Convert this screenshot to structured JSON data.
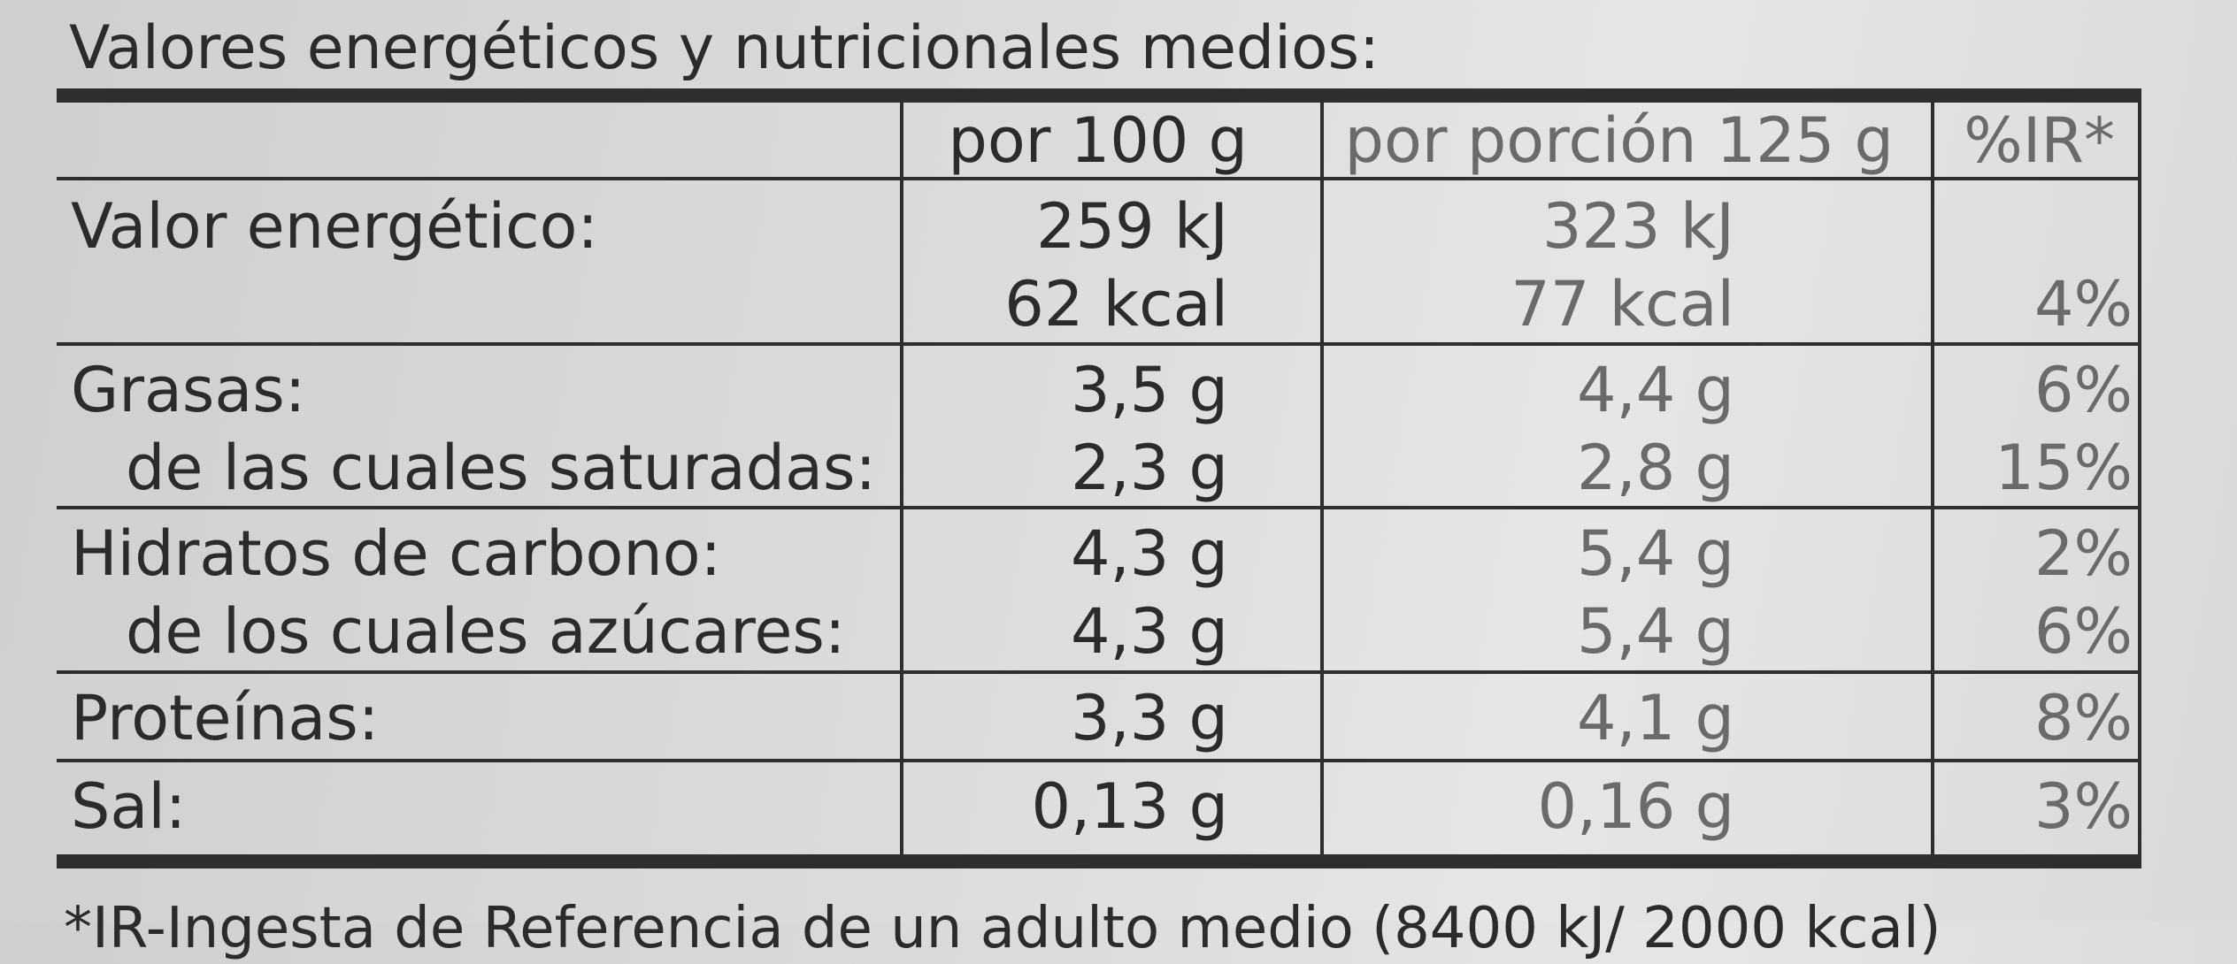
{
  "title": "Valores energéticos y nutricionales medios:",
  "table": {
    "header": [
      "por 100 g",
      "por porción 125 g",
      "%IR*"
    ],
    "rows": [
      {
        "label": [
          "Valor energético:"
        ],
        "per100": [
          "259 kJ",
          "62 kcal"
        ],
        "portion": [
          "323 kJ",
          "77 kcal"
        ],
        "ir": [
          "4%"
        ]
      },
      {
        "label": [
          "Grasas:",
          "de las cuales saturadas:"
        ],
        "per100": [
          "3,5 g",
          "2,3 g"
        ],
        "portion": [
          "4,4 g",
          "2,8 g"
        ],
        "ir": [
          "6%",
          "15%"
        ]
      },
      {
        "label": [
          "Hidratos de carbono:",
          "de los cuales azúcares:"
        ],
        "per100": [
          "4,3 g",
          "4,3 g"
        ],
        "portion": [
          "5,4 g",
          "5,4 g"
        ],
        "ir": [
          "2%",
          "6%"
        ]
      },
      {
        "label": [
          "Proteínas:"
        ],
        "per100": [
          "3,3 g"
        ],
        "portion": [
          "4,1 g"
        ],
        "ir": [
          "8%"
        ]
      },
      {
        "label": [
          "Sal:"
        ],
        "per100": [
          "0,13 g"
        ],
        "portion": [
          "0,16 g"
        ],
        "ir": [
          "3%"
        ]
      }
    ]
  },
  "footnote": "*IR-Ingesta de Referencia de un adulto medio (8400 kJ/ 2000 kcal)"
}
